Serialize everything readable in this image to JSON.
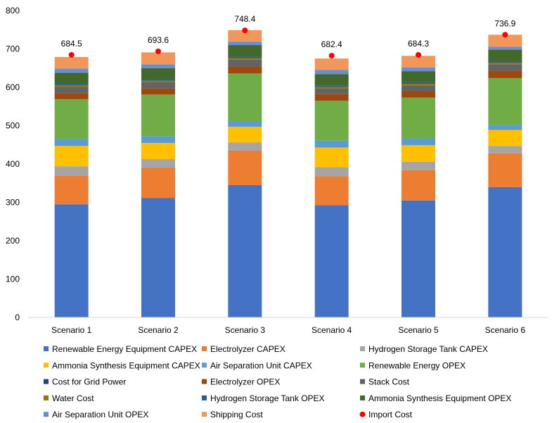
{
  "chart_data": {
    "type": "bar",
    "stacked": true,
    "title": "",
    "xlabel": "",
    "ylabel": "",
    "ylim": [
      0,
      800
    ],
    "yticks": [
      0,
      100,
      200,
      300,
      400,
      500,
      600,
      700,
      800
    ],
    "grid": false,
    "legend_position": "bottom",
    "categories": [
      "Scenario 1",
      "Scenario 2",
      "Scenario 3",
      "Scenario 4",
      "Scenario 5",
      "Scenario 6"
    ],
    "series": [
      {
        "name": "Renewable Energy Equipment CAPEX",
        "color": "#4472C4",
        "values": [
          295,
          311,
          345,
          293,
          305,
          340
        ]
      },
      {
        "name": "Electrolyzer CAPEX",
        "color": "#ED7D31",
        "values": [
          75,
          79,
          90,
          75,
          79,
          88
        ]
      },
      {
        "name": "Hydrogen Storage Tank CAPEX",
        "color": "#A5A5A5",
        "values": [
          24,
          23,
          21,
          24,
          22,
          19
        ]
      },
      {
        "name": "Ammonia Synthesis Equipment CAPEX",
        "color": "#FFC000",
        "values": [
          53,
          42,
          41,
          51,
          43,
          42
        ]
      },
      {
        "name": "Air Separation Unit CAPEX",
        "color": "#5B9BD5",
        "values": [
          18,
          17,
          14,
          18,
          17,
          13
        ]
      },
      {
        "name": "Renewable Energy OPEX",
        "color": "#70AD47",
        "values": [
          104,
          109,
          125,
          104,
          107,
          122
        ]
      },
      {
        "name": "Cost for Grid Power",
        "color": "#264478",
        "values": [
          0,
          0,
          0,
          0,
          0,
          0
        ]
      },
      {
        "name": "Electrolyzer OPEX",
        "color": "#9E480E",
        "values": [
          16,
          16,
          18,
          17,
          16,
          19
        ]
      },
      {
        "name": "Stack Cost",
        "color": "#636363",
        "values": [
          16,
          16,
          18,
          15,
          16,
          17
        ]
      },
      {
        "name": "Water Cost",
        "color": "#997300",
        "values": [
          4,
          4,
          4,
          4,
          4,
          4
        ]
      },
      {
        "name": "Hydrogen Storage Tank OPEX",
        "color": "#255E91",
        "values": [
          4,
          4,
          4,
          4,
          4,
          4
        ]
      },
      {
        "name": "Ammonia Synthesis Equipment OPEX",
        "color": "#43682B",
        "values": [
          29,
          29,
          30,
          29,
          29,
          30
        ]
      },
      {
        "name": "Air Separation Unit OPEX",
        "color": "#698ED0",
        "values": [
          11,
          10,
          9,
          11,
          10,
          8
        ]
      },
      {
        "name": "Shipping Cost",
        "color": "#F1975A",
        "values": [
          30,
          31,
          30,
          30,
          30,
          31
        ]
      }
    ],
    "markers": {
      "name": "Import Cost",
      "color": "#FF0000",
      "values": [
        684.5,
        693.6,
        748.4,
        682.4,
        684.3,
        736.9
      ]
    },
    "data_labels": [
      "684.5",
      "693.6",
      "748.4",
      "682.4",
      "684.3",
      "736.9"
    ]
  }
}
